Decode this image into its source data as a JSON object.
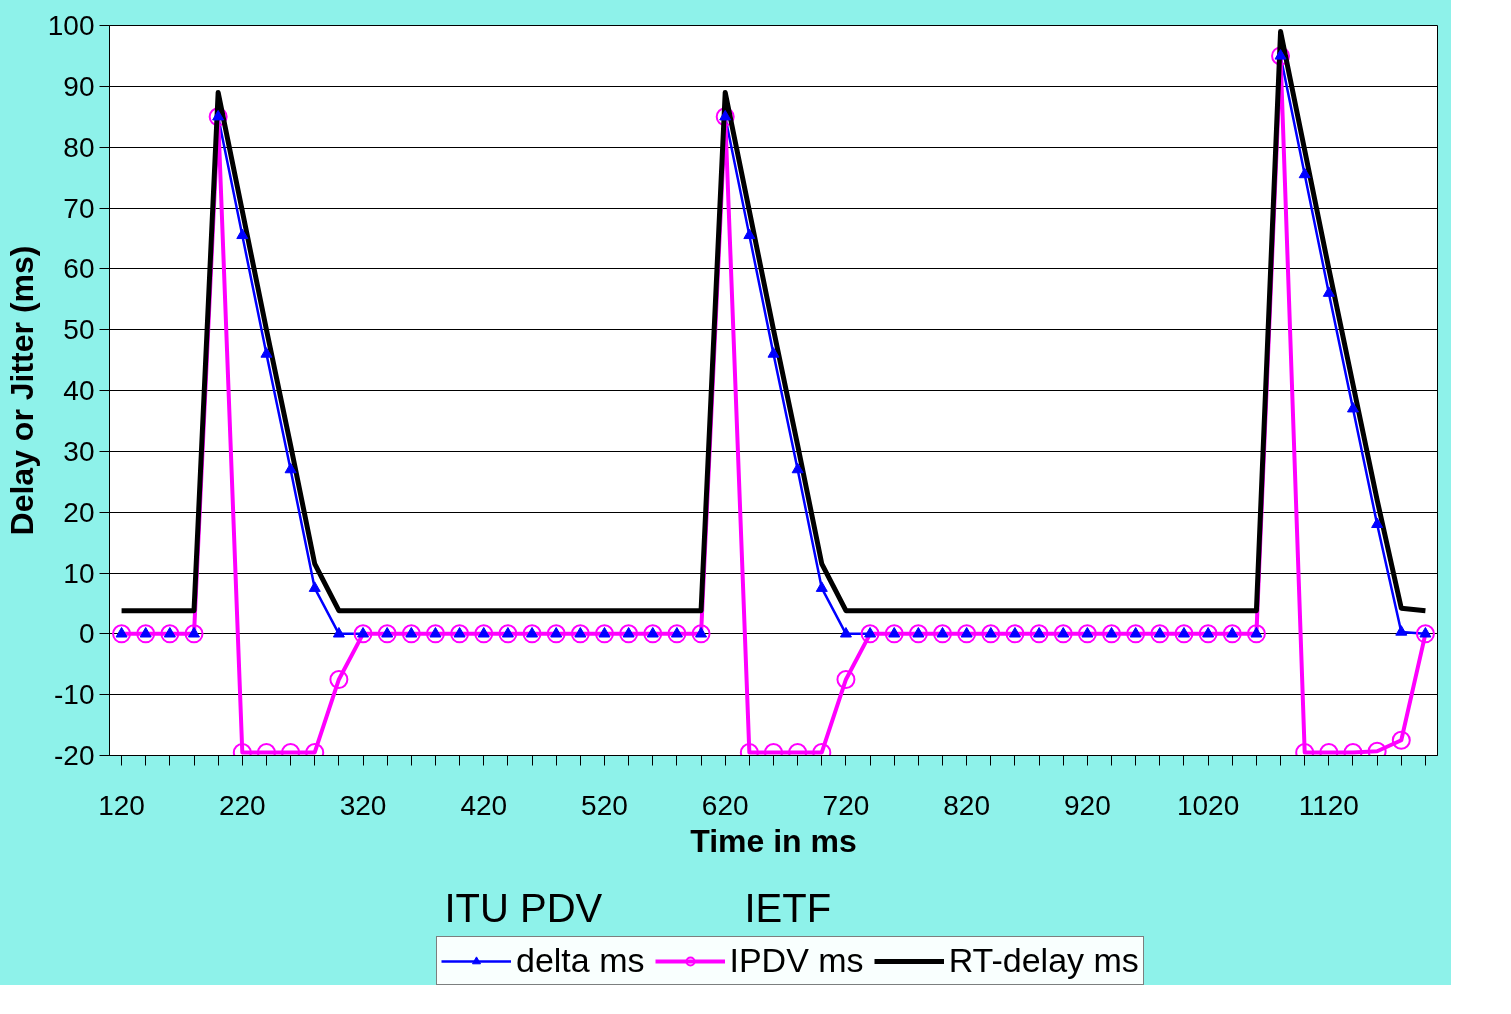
{
  "chart_data": {
    "type": "line",
    "xlabel": "Time in ms",
    "ylabel": "Delay or Jitter (ms)",
    "x": [
      120,
      140,
      160,
      180,
      200,
      220,
      240,
      260,
      280,
      300,
      320,
      340,
      360,
      380,
      400,
      420,
      440,
      460,
      480,
      500,
      520,
      540,
      560,
      580,
      600,
      620,
      640,
      660,
      680,
      700,
      720,
      740,
      760,
      780,
      800,
      820,
      840,
      860,
      880,
      900,
      920,
      940,
      960,
      980,
      1000,
      1020,
      1040,
      1060,
      1080,
      1100,
      1120,
      1140,
      1160,
      1180,
      1200
    ],
    "series": [
      {
        "name": "delta ms",
        "color": "#0000ff",
        "marker": "triangle",
        "values": [
          0,
          0,
          0,
          0,
          85,
          65.5,
          46,
          27,
          7.5,
          0,
          0,
          0,
          0,
          0,
          0,
          0,
          0,
          0,
          0,
          0,
          0,
          0,
          0,
          0,
          0,
          85,
          65.5,
          46,
          27,
          7.5,
          0,
          0,
          0,
          0,
          0,
          0,
          0,
          0,
          0,
          0,
          0,
          0,
          0,
          0,
          0,
          0,
          0,
          0,
          95,
          75.5,
          56,
          37,
          18,
          0.3,
          0
        ]
      },
      {
        "name": "IPDV ms",
        "color": "#ff00ff",
        "marker": "circle",
        "values": [
          0,
          0,
          0,
          0,
          85,
          -19.5,
          -19.5,
          -19.5,
          -19.5,
          -7.5,
          0,
          0,
          0,
          0,
          0,
          0,
          0,
          0,
          0,
          0,
          0,
          0,
          0,
          0,
          0,
          85,
          -19.5,
          -19.5,
          -19.5,
          -19.5,
          -7.5,
          0,
          0,
          0,
          0,
          0,
          0,
          0,
          0,
          0,
          0,
          0,
          0,
          0,
          0,
          0,
          0,
          0,
          95,
          -19.5,
          -19.5,
          -19.5,
          -19.3,
          -17.5,
          0
        ]
      },
      {
        "name": "RT-delay ms",
        "color": "#000000",
        "marker": "none",
        "values": [
          3.8,
          3.8,
          3.8,
          3.8,
          89,
          69.5,
          50,
          31,
          11.5,
          3.8,
          3.8,
          3.8,
          3.8,
          3.8,
          3.8,
          3.8,
          3.8,
          3.8,
          3.8,
          3.8,
          3.8,
          3.8,
          3.8,
          3.8,
          3.8,
          89,
          69.5,
          50,
          31,
          11.5,
          3.8,
          3.8,
          3.8,
          3.8,
          3.8,
          3.8,
          3.8,
          3.8,
          3.8,
          3.8,
          3.8,
          3.8,
          3.8,
          3.8,
          3.8,
          3.8,
          3.8,
          3.8,
          99,
          79.5,
          60,
          41,
          22,
          4.2,
          3.8
        ]
      }
    ],
    "xlim": [
      110,
      1210
    ],
    "ylim": [
      -20,
      100
    ],
    "yticks": [
      -20,
      -10,
      0,
      10,
      20,
      30,
      40,
      50,
      60,
      70,
      80,
      90,
      100
    ],
    "xticks": [
      120,
      {
        "value": 140,
        "label": null
      },
      {
        "value": 160,
        "label": null
      },
      {
        "value": 180,
        "label": null
      },
      {
        "value": 200,
        "label": null
      },
      220,
      {
        "value": 240,
        "label": null
      },
      {
        "value": 260,
        "label": null
      },
      {
        "value": 280,
        "label": null
      },
      {
        "value": 300,
        "label": null
      },
      320,
      {
        "value": 340,
        "label": null
      },
      {
        "value": 360,
        "label": null
      },
      {
        "value": 380,
        "label": null
      },
      {
        "value": 400,
        "label": null
      },
      420,
      {
        "value": 440,
        "label": null
      },
      {
        "value": 460,
        "label": null
      },
      {
        "value": 480,
        "label": null
      },
      {
        "value": 500,
        "label": null
      },
      520,
      {
        "value": 540,
        "label": null
      },
      {
        "value": 560,
        "label": null
      },
      {
        "value": 580,
        "label": null
      },
      {
        "value": 600,
        "label": null
      },
      620,
      {
        "value": 640,
        "label": null
      },
      {
        "value": 660,
        "label": null
      },
      {
        "value": 680,
        "label": null
      },
      {
        "value": 700,
        "label": null
      },
      720,
      {
        "value": 740,
        "label": null
      },
      {
        "value": 760,
        "label": null
      },
      {
        "value": 780,
        "label": null
      },
      {
        "value": 800,
        "label": null
      },
      820,
      {
        "value": 840,
        "label": null
      },
      {
        "value": 860,
        "label": null
      },
      {
        "value": 880,
        "label": null
      },
      {
        "value": 900,
        "label": null
      },
      920,
      {
        "value": 940,
        "label": null
      },
      {
        "value": 960,
        "label": null
      },
      {
        "value": 980,
        "label": null
      },
      {
        "value": 1000,
        "label": null
      },
      1020,
      {
        "value": 1040,
        "label": null
      },
      {
        "value": 1060,
        "label": null
      },
      {
        "value": 1080,
        "label": null
      },
      {
        "value": 1100,
        "label": null
      },
      1120,
      {
        "value": 1140,
        "label": null
      },
      {
        "value": 1160,
        "label": null
      },
      {
        "value": 1180,
        "label": null
      },
      {
        "value": 1200,
        "label": null
      }
    ],
    "grid": "y",
    "legend": "bottom",
    "line_style": "solid",
    "annotations": [
      "ITU PDV",
      "IETF"
    ]
  }
}
